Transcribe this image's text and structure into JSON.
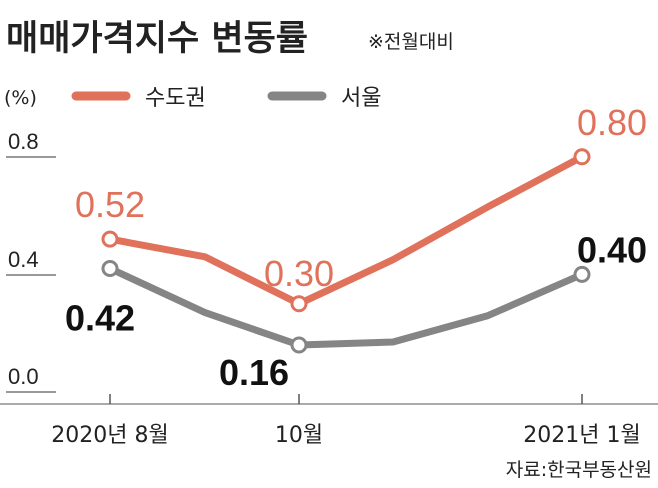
{
  "chart_data": {
    "type": "line",
    "title": "매매가격지수 변동률",
    "note": "※전월대비",
    "unit": "(%)",
    "source": "자료:한국부동산원",
    "x_labels": [
      "2020년 8월",
      "",
      "10월",
      "",
      "",
      "2021년 1월"
    ],
    "y_ticks": [
      "0.0",
      "0.4",
      "0.8"
    ],
    "ylim": [
      0.0,
      0.85
    ],
    "grid": false,
    "legend_position": "top",
    "series": [
      {
        "name": "수도권",
        "color": "#e0715a",
        "values": [
          0.52,
          0.46,
          0.3,
          0.45,
          0.63,
          0.8
        ],
        "labels": [
          "0.52",
          null,
          "0.30",
          null,
          null,
          "0.80"
        ]
      },
      {
        "name": "서울",
        "color": "#858585",
        "values": [
          0.42,
          0.27,
          0.16,
          0.17,
          0.26,
          0.4
        ],
        "labels": [
          "0.42",
          null,
          "0.16",
          null,
          null,
          "0.40"
        ]
      }
    ]
  }
}
